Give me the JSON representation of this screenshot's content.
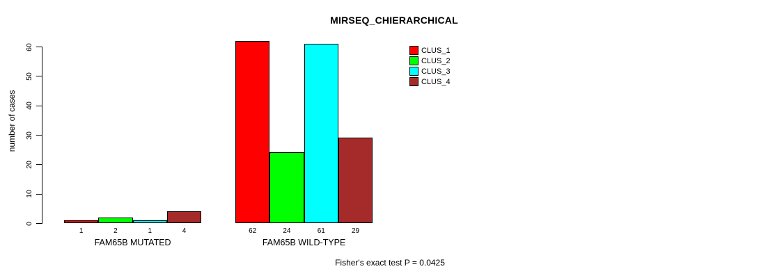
{
  "chart_data": {
    "type": "bar",
    "title": "MIRSEQ_CHIERARCHICAL",
    "ylabel": "number of cases",
    "xlabel": "",
    "ylim": [
      0,
      60
    ],
    "yticks": [
      0,
      10,
      20,
      30,
      40,
      50,
      60
    ],
    "grid": false,
    "legend_position": "top-right",
    "categories": [
      "FAM65B MUTATED",
      "FAM65B WILD-TYPE"
    ],
    "series": [
      {
        "name": "CLUS_1",
        "color": "#ff0000",
        "values": [
          1,
          62
        ]
      },
      {
        "name": "CLUS_2",
        "color": "#00ff00",
        "values": [
          2,
          24
        ]
      },
      {
        "name": "CLUS_3",
        "color": "#00ffff",
        "values": [
          1,
          61
        ]
      },
      {
        "name": "CLUS_4",
        "color": "#a52a2a",
        "values": [
          4,
          29
        ]
      }
    ]
  },
  "annotation": "Fisher's exact test P = 0.0425",
  "colors": {
    "background": "#ffffff",
    "axis": "#000000",
    "text": "#000000",
    "bar_border": "#000000"
  }
}
